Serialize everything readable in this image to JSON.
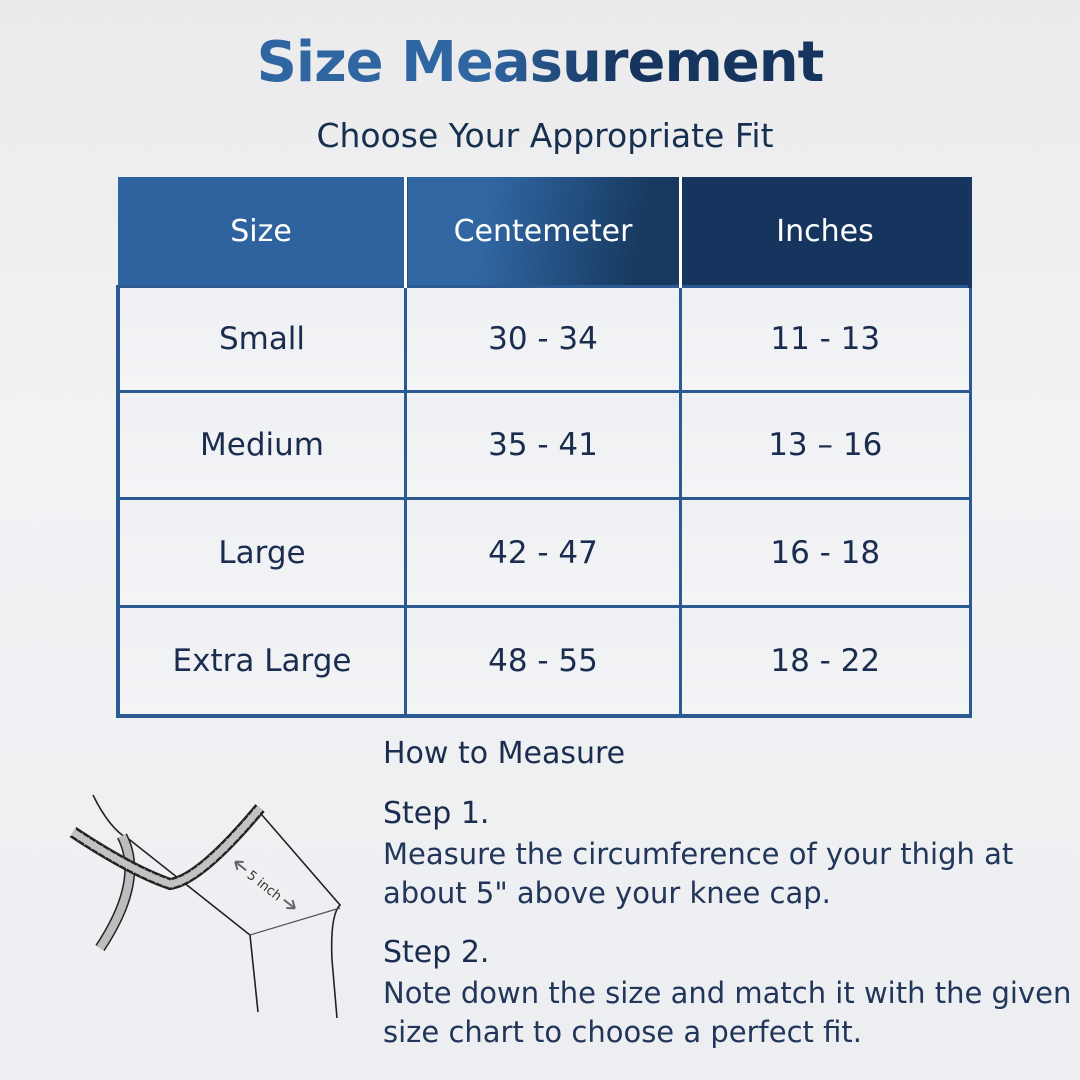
{
  "title": "Size Measurement",
  "subtitle": "Choose Your Appropriate Fit",
  "table": {
    "headers": [
      "Size",
      "Centemeter",
      "Inches"
    ],
    "rows": [
      [
        "Small",
        "30 - 34",
        "11 - 13"
      ],
      [
        "Medium",
        "35 - 41",
        "13 – 16"
      ],
      [
        "Large",
        "42 - 47",
        "16 - 18"
      ],
      [
        "Extra Large",
        "48 - 55",
        "18 - 22"
      ]
    ]
  },
  "how": {
    "heading": "How to Measure",
    "steps": [
      {
        "label": "Step 1.",
        "text": "Measure the circumference of your thigh at about 5\" above your knee cap."
      },
      {
        "label": "Step 2.",
        "text": "Note down the size and match it with the given size chart to choose a perfect fit."
      }
    ]
  },
  "illustration": {
    "label": "5 inch",
    "icon": "leg-measuring-tape-icon"
  },
  "colors": {
    "primary": "#2f63a0",
    "dark": "#15355f",
    "text": "#1b2d4e"
  }
}
